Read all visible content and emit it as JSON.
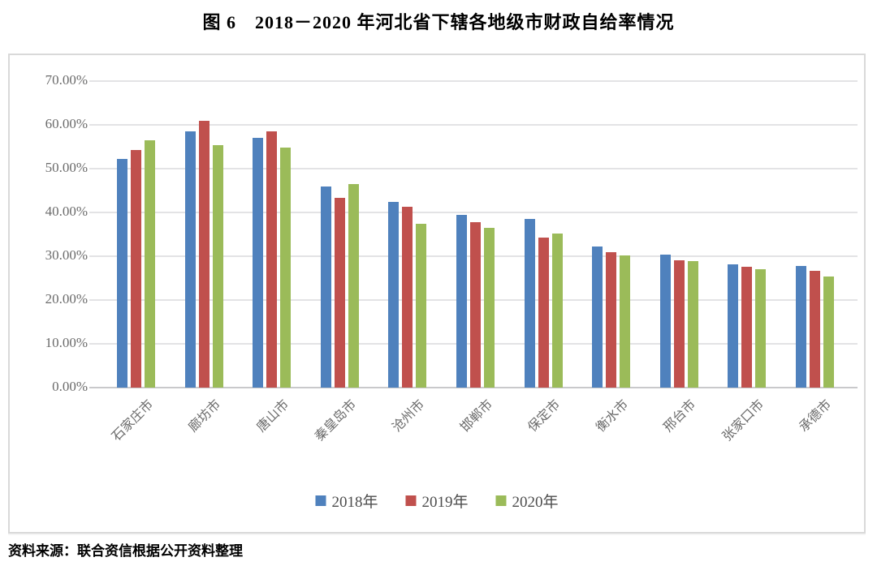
{
  "title": "图 6　2018－2020 年河北省下辖各地级市财政自给率情况",
  "source_note": "资料来源：联合资信根据公开资料整理",
  "chart_data": {
    "type": "bar",
    "title": "图 6　2018－2020 年河北省下辖各地级市财政自给率情况",
    "categories": [
      "石家庄市",
      "廊坊市",
      "唐山市",
      "秦皇岛市",
      "沧州市",
      "邯郸市",
      "保定市",
      "衡水市",
      "邢台市",
      "张家口市",
      "承德市"
    ],
    "series": [
      {
        "name": "2018年",
        "color": "#4F81BD",
        "values": [
          52.2,
          58.5,
          57.0,
          45.9,
          42.4,
          39.4,
          38.5,
          32.2,
          30.4,
          28.1,
          27.8
        ]
      },
      {
        "name": "2019年",
        "color": "#C0504D",
        "values": [
          54.2,
          60.9,
          58.5,
          43.4,
          41.3,
          37.8,
          34.3,
          31.0,
          29.1,
          27.6,
          26.7
        ]
      },
      {
        "name": "2020年",
        "color": "#9BBB59",
        "values": [
          56.4,
          55.3,
          54.8,
          46.5,
          37.5,
          36.5,
          35.1,
          30.2,
          28.9,
          27.1,
          25.4
        ]
      }
    ],
    "ylim": [
      0,
      70
    ],
    "ytick_step": 10,
    "yticks": [
      "0.00%",
      "10.00%",
      "20.00%",
      "30.00%",
      "40.00%",
      "50.00%",
      "60.00%",
      "70.00%"
    ],
    "xlabel": "",
    "ylabel": "",
    "grid": true,
    "legend_position": "bottom"
  }
}
